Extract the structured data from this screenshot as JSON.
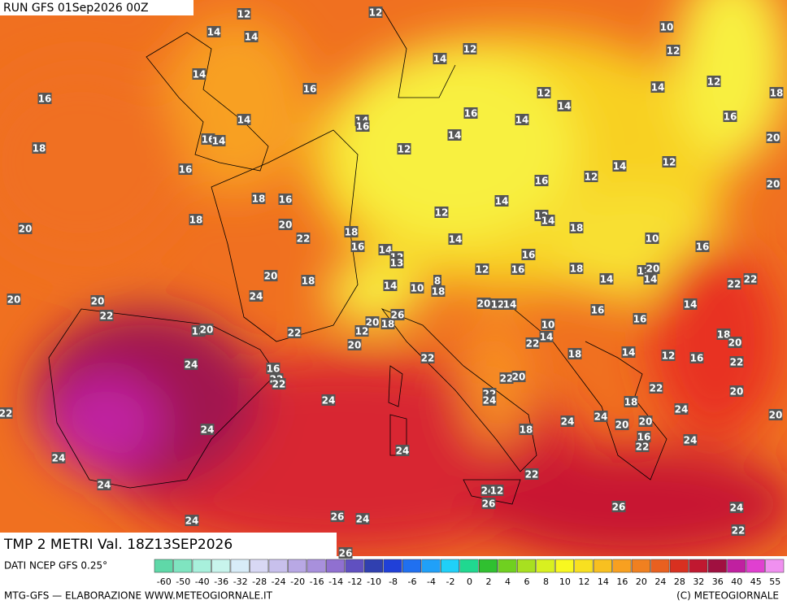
{
  "header": {
    "run": "RUN GFS 01Sep2026 00Z"
  },
  "map": {
    "field": "TMP 2 METRI Val. 18Z13SEP2026",
    "labels": [
      12,
      12,
      14,
      14,
      12,
      14,
      10,
      12,
      14,
      16,
      16,
      12,
      14,
      14,
      12,
      18,
      16,
      14,
      16,
      14,
      14,
      16,
      18,
      16,
      14,
      12,
      14,
      20,
      16,
      16,
      12,
      14,
      12,
      20,
      18,
      16,
      14,
      18,
      12,
      12,
      14,
      18,
      20,
      20,
      22,
      18,
      16,
      14,
      12,
      13,
      14,
      10,
      16,
      16,
      12,
      16,
      18,
      12,
      20,
      14,
      20,
      18,
      8,
      24,
      14,
      10,
      18,
      14,
      20,
      20,
      22,
      20,
      12,
      14,
      16,
      16,
      14,
      22,
      22,
      20,
      18,
      12,
      20,
      10,
      14,
      22,
      12,
      20,
      22,
      18,
      20,
      18,
      14,
      12,
      16,
      22,
      24,
      16,
      22,
      22,
      22,
      22,
      20,
      24,
      22,
      24,
      22,
      18,
      20,
      24,
      22,
      24,
      18,
      24,
      24,
      20,
      20,
      20,
      16,
      22,
      24,
      24,
      24,
      22,
      24,
      24,
      12,
      24,
      26,
      26,
      24,
      26,
      24,
      22,
      26,
      26
    ],
    "scale_colors": [
      "#5fd8a8",
      "#7fe4c0",
      "#a8f0dc",
      "#c8f4ec",
      "#d8ecf8",
      "#d8d8f4",
      "#c8c0ec",
      "#b8a8e4",
      "#a890dc",
      "#9070d0",
      "#6050c0",
      "#3040b0",
      "#2040d8",
      "#2070f0",
      "#20a0f8",
      "#20d0f8",
      "#20d890",
      "#30c030",
      "#70d020",
      "#a8e020",
      "#d8f020",
      "#f8f820",
      "#f8e020",
      "#f8c020",
      "#f8a020",
      "#f08020",
      "#e86020",
      "#d83020",
      "#c01830",
      "#a01040",
      "#c020a0",
      "#e040d0",
      "#f090f0"
    ],
    "scale_ticks": [
      -60,
      -50,
      -40,
      -36,
      -32,
      -28,
      -24,
      -20,
      -16,
      -14,
      -12,
      -10,
      -8,
      -6,
      -4,
      -2,
      0,
      2,
      4,
      6,
      8,
      10,
      12,
      14,
      16,
      20,
      24,
      28,
      32,
      36,
      40,
      45,
      55
    ]
  },
  "footer": {
    "source": "DATI NCEP GFS 0.25°",
    "credit": "MTG-GFS — ELABORAZIONE WWW.METEOGIORNALE.IT",
    "copyright": "(C) METEOGIORNALE"
  }
}
